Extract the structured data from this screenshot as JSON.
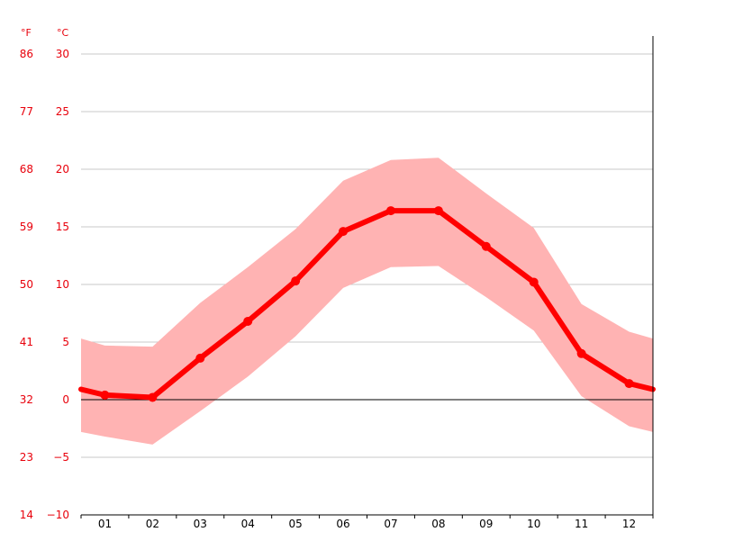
{
  "chart_data": {
    "type": "line",
    "categories": [
      "01",
      "02",
      "03",
      "04",
      "05",
      "06",
      "07",
      "08",
      "09",
      "10",
      "11",
      "12"
    ],
    "series": [
      {
        "values": [
          0.4,
          0.2,
          3.6,
          6.8,
          10.3,
          14.6,
          16.4,
          16.4,
          13.3,
          10.2,
          4.0,
          1.4
        ]
      }
    ],
    "band": {
      "upper": [
        4.7,
        4.6,
        8.4,
        11.5,
        14.8,
        19.0,
        20.8,
        21.0,
        17.9,
        14.9,
        8.3,
        5.9
      ],
      "lower": [
        -3.2,
        -3.9,
        -1.0,
        2.0,
        5.5,
        9.7,
        11.5,
        11.6,
        8.9,
        6.0,
        0.3,
        -2.3
      ],
      "edge_left": {
        "upper": 5.3,
        "lower": -2.8
      },
      "edge_right": {
        "upper": 5.3,
        "lower": -2.8
      }
    },
    "edge_line": {
      "left": 0.9,
      "right": 0.9
    },
    "ylim": [
      -10,
      30
    ],
    "y_ticks_c": [
      -10,
      -5,
      0,
      5,
      10,
      15,
      20,
      25,
      30
    ],
    "y_ticks_f": [
      14,
      23,
      32,
      41,
      50,
      59,
      68,
      77,
      86
    ],
    "unit_f": "°F",
    "unit_c": "°C",
    "grid": true,
    "colors": {
      "line": "#ff0000",
      "band": "#ffb3b3",
      "axis_text": "#e8000b",
      "grid": "#c8c8c8",
      "zero_line": "#000000"
    }
  }
}
